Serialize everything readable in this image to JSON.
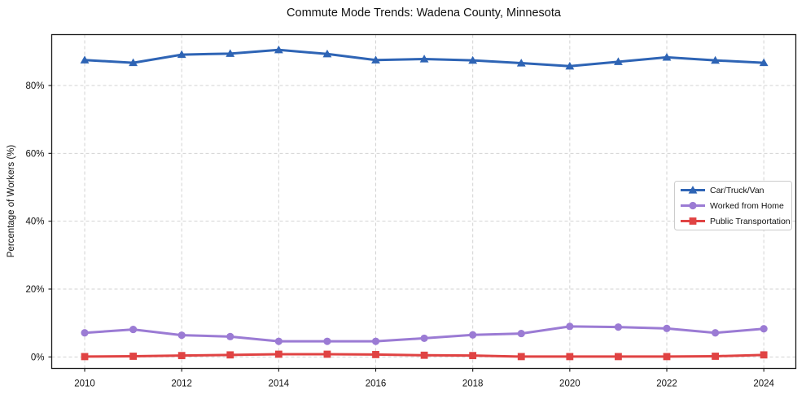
{
  "chart_data": {
    "type": "line",
    "title": "Commute Mode Trends: Wadena County, Minnesota",
    "xlabel": "",
    "ylabel": "Percentage of Workers (%)",
    "x": [
      2010,
      2011,
      2012,
      2013,
      2014,
      2015,
      2016,
      2017,
      2018,
      2019,
      2020,
      2021,
      2022,
      2023,
      2024
    ],
    "x_ticks": [
      2010,
      2012,
      2014,
      2016,
      2018,
      2020,
      2022,
      2024
    ],
    "x_tick_labels": [
      "2010",
      "2012",
      "2014",
      "2016",
      "2018",
      "2020",
      "2022",
      "2024"
    ],
    "y_ticks": [
      0,
      20,
      40,
      60,
      80
    ],
    "y_tick_labels": [
      "0%",
      "20%",
      "40%",
      "60%",
      "80%"
    ],
    "xlim": [
      2009.32,
      2024.66
    ],
    "ylim": [
      -3.4,
      95
    ],
    "grid": true,
    "grid_color": "#d3d3d3",
    "legend_position": "center right",
    "series": [
      {
        "name": "Car/Truck/Van",
        "color": "#2e64b5",
        "marker": "triangle",
        "values": [
          87.5,
          86.7,
          89.1,
          89.4,
          90.5,
          89.3,
          87.5,
          87.8,
          87.4,
          86.6,
          85.7,
          87.0,
          88.3,
          87.4,
          86.7
        ]
      },
      {
        "name": "Worked from Home",
        "color": "#9b7bd4",
        "marker": "circle",
        "values": [
          7.1,
          8.1,
          6.4,
          6.0,
          4.6,
          4.6,
          4.6,
          5.5,
          6.5,
          6.9,
          9.0,
          8.8,
          8.4,
          7.1,
          8.3
        ]
      },
      {
        "name": "Public Transportation",
        "color": "#e04343",
        "marker": "square",
        "values": [
          0.1,
          0.2,
          0.4,
          0.6,
          0.8,
          0.8,
          0.7,
          0.5,
          0.4,
          0.1,
          0.1,
          0.1,
          0.1,
          0.2,
          0.6
        ]
      }
    ]
  }
}
